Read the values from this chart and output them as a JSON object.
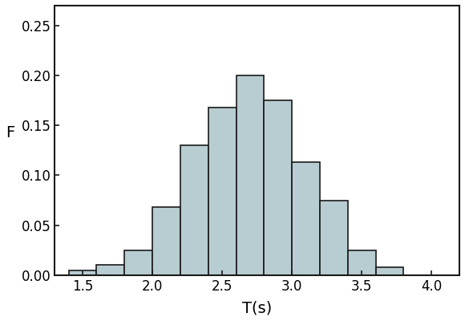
{
  "bin_edges": [
    1.4,
    1.6,
    1.8,
    2.0,
    2.2,
    2.4,
    2.6,
    2.8,
    3.0,
    3.2,
    3.4,
    3.6,
    3.8,
    4.0
  ],
  "frequencies": [
    0.005,
    0.01,
    0.025,
    0.068,
    0.13,
    0.168,
    0.2,
    0.175,
    0.113,
    0.075,
    0.025,
    0.008,
    0.0
  ],
  "bar_facecolor": "#b8cdd1",
  "bar_edgecolor": "#1a1a1a",
  "xlabel": "T(s)",
  "ylabel": "F",
  "xlim": [
    1.3,
    4.2
  ],
  "ylim": [
    0.0,
    0.27
  ],
  "xticks": [
    1.5,
    2.0,
    2.5,
    3.0,
    3.5,
    4.0
  ],
  "yticks": [
    0.0,
    0.05,
    0.1,
    0.15,
    0.2,
    0.25
  ],
  "xlabel_fontsize": 14,
  "ylabel_fontsize": 14,
  "tick_fontsize": 12,
  "bar_linewidth": 1.2,
  "figsize": [
    5.8,
    4.0
  ]
}
